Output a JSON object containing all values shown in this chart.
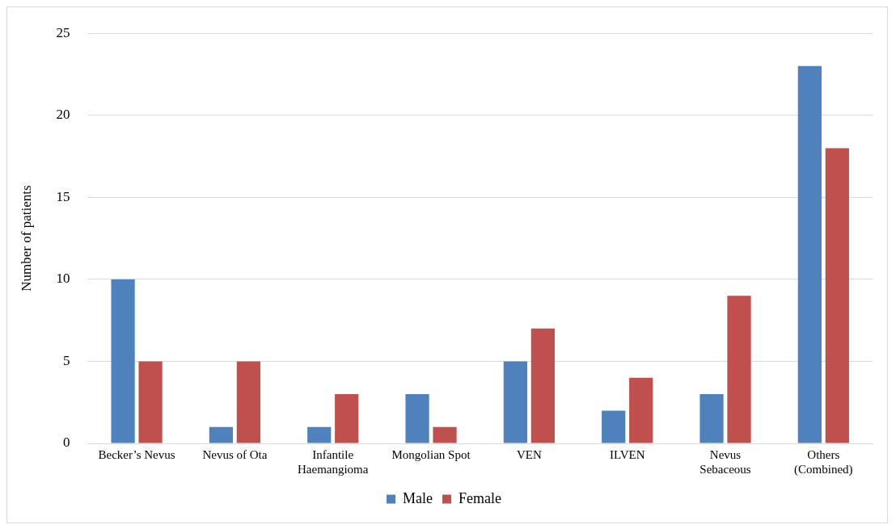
{
  "chart_data": {
    "type": "bar",
    "ylabel": "Number of patients",
    "categories": [
      "Becker’s Nevus",
      "Nevus of Ota",
      "Infantile Haemangioma",
      "Mongolian Spot",
      "VEN",
      "ILVEN",
      "Nevus Sebaceous",
      "Others (Combined)"
    ],
    "series": [
      {
        "name": "Male",
        "color": "#4f81bd",
        "values": [
          10,
          1,
          1,
          3,
          5,
          2,
          3,
          23
        ]
      },
      {
        "name": "Female",
        "color": "#c0504d",
        "values": [
          5,
          5,
          3,
          1,
          7,
          4,
          9,
          18
        ]
      }
    ],
    "ylim": [
      0,
      25
    ],
    "yticks": [
      0,
      5,
      10,
      15,
      20,
      25
    ],
    "grid": "y",
    "legend": "bottom"
  }
}
